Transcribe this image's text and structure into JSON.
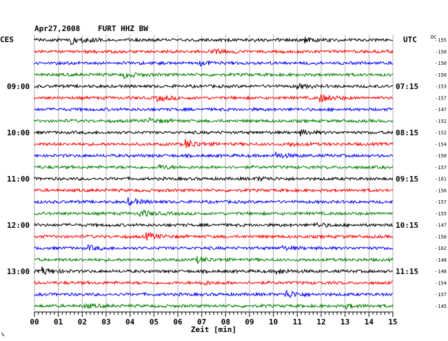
{
  "header": {
    "date": "Apr27,2008",
    "station": "FURT HHZ BW",
    "left_zone": "CES",
    "right_zone": "UTC",
    "dc_label": "DC"
  },
  "chart_data": {
    "type": "line",
    "title": "Apr27,2008   FURT HHZ BW",
    "xlabel": "Zeit [min]",
    "x_ticks": [
      "00",
      "01",
      "02",
      "03",
      "04",
      "05",
      "06",
      "07",
      "08",
      "09",
      "10",
      "11",
      "12",
      "13",
      "14",
      "15"
    ],
    "xlim": [
      0,
      15
    ],
    "grid": true,
    "trace_colors": [
      "#000000",
      "#ff0000",
      "#0000ff",
      "#008000"
    ],
    "left_time_labels": [
      {
        "row": 4,
        "text": "09:00"
      },
      {
        "row": 8,
        "text": "10:00"
      },
      {
        "row": 12,
        "text": "11:00"
      },
      {
        "row": 16,
        "text": "12:00"
      },
      {
        "row": 20,
        "text": "13:00"
      }
    ],
    "right_time_labels": [
      {
        "row": 4,
        "text": "07:15"
      },
      {
        "row": 8,
        "text": "08:15"
      },
      {
        "row": 12,
        "text": "09:15"
      },
      {
        "row": 16,
        "text": "10:15"
      },
      {
        "row": 20,
        "text": "11:15"
      }
    ],
    "dc_offsets": [
      -155,
      -150,
      -150,
      -150,
      -153,
      -157,
      -147,
      -152,
      -152,
      -154,
      -150,
      -157,
      -161,
      -156,
      -157,
      -155,
      -147,
      -150,
      -162,
      -148,
      -148,
      -154,
      -157,
      -145
    ],
    "events": [
      {
        "row": 0,
        "minute": 1.5,
        "amp": 1.0
      },
      {
        "row": 0,
        "minute": 11.3,
        "amp": 0.45
      },
      {
        "row": 1,
        "minute": 7.4,
        "amp": 0.5
      },
      {
        "row": 2,
        "minute": 6.9,
        "amp": 0.35
      },
      {
        "row": 3,
        "minute": 3.7,
        "amp": 0.55
      },
      {
        "row": 4,
        "minute": 10.9,
        "amp": 0.45
      },
      {
        "row": 5,
        "minute": 5.1,
        "amp": 0.6
      },
      {
        "row": 5,
        "minute": 11.9,
        "amp": 0.8
      },
      {
        "row": 7,
        "minute": 4.8,
        "amp": 0.45
      },
      {
        "row": 8,
        "minute": 11.1,
        "amp": 0.5
      },
      {
        "row": 9,
        "minute": 6.3,
        "amp": 0.9
      },
      {
        "row": 9,
        "minute": 10.6,
        "amp": 0.35
      },
      {
        "row": 10,
        "minute": 10.0,
        "amp": 0.6
      },
      {
        "row": 11,
        "minute": 5.2,
        "amp": 0.4
      },
      {
        "row": 12,
        "minute": 9.3,
        "amp": 0.4
      },
      {
        "row": 14,
        "minute": 3.9,
        "amp": 0.7
      },
      {
        "row": 15,
        "minute": 4.4,
        "amp": 0.65
      },
      {
        "row": 16,
        "minute": 11.7,
        "amp": 0.35
      },
      {
        "row": 17,
        "minute": 4.6,
        "amp": 0.75
      },
      {
        "row": 18,
        "minute": 2.2,
        "amp": 0.45
      },
      {
        "row": 18,
        "minute": 10.3,
        "amp": 0.35
      },
      {
        "row": 19,
        "minute": 6.8,
        "amp": 0.55
      },
      {
        "row": 20,
        "minute": 0.3,
        "amp": 0.65
      },
      {
        "row": 20,
        "minute": 10.1,
        "amp": 0.5
      },
      {
        "row": 21,
        "minute": 6.9,
        "amp": 0.35
      },
      {
        "row": 22,
        "minute": 10.5,
        "amp": 0.8
      },
      {
        "row": 23,
        "minute": 2.1,
        "amp": 0.35
      },
      {
        "row": 23,
        "minute": 13.0,
        "amp": 0.35
      }
    ],
    "footnote": "%"
  }
}
